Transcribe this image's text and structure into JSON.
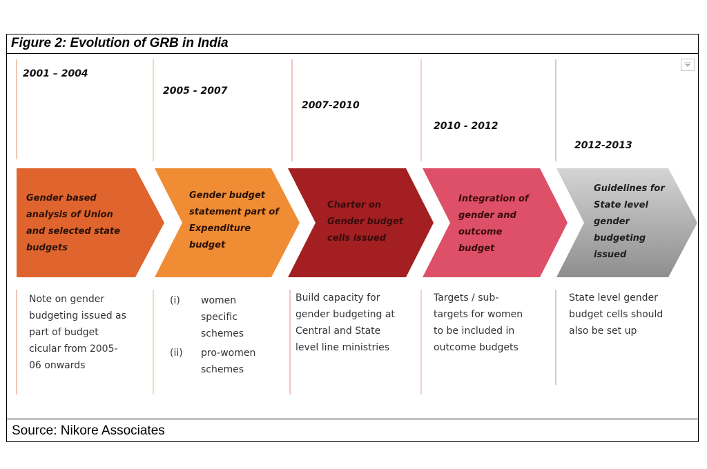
{
  "figure": {
    "title": "Figure 2: Evolution of GRB in India",
    "source": "Source: Nikore Associates"
  },
  "stages": [
    {
      "period": "2001 – 2004",
      "milestone": "Gender based analysis of Union and selected state budgets",
      "milestone_lines": [
        "Gender based",
        "analysis of Union",
        "and selected state",
        "budgets"
      ],
      "description_lines": [
        "Note on gender",
        "budgeting issued as",
        "part of budget",
        "cicular from 2005-",
        "06 onwards"
      ],
      "color": "#e0642e"
    },
    {
      "period": "2005 - 2007",
      "milestone": "Gender budget statement part of Expenditure budget",
      "milestone_lines": [
        "Gender budget",
        "statement part of",
        "Expenditure",
        "budget"
      ],
      "description_items": [
        {
          "marker": "(i)",
          "lines": [
            "women",
            "specific",
            "schemes"
          ]
        },
        {
          "marker": "(ii)",
          "lines": [
            "pro-women",
            "schemes"
          ]
        }
      ],
      "color": "#ef8c34"
    },
    {
      "period": "2007-2010",
      "milestone": "Charter on Gender budget cells issued",
      "milestone_lines": [
        "Charter on",
        "Gender budget",
        "cells issued"
      ],
      "description_lines": [
        "Build capacity for",
        "gender budgeting at",
        "Central and State",
        "level line ministries"
      ],
      "color": "#a31f22"
    },
    {
      "period": "2010 - 2012",
      "milestone": "Integration of gender and outcome budget",
      "milestone_lines": [
        "Integration of",
        "gender and",
        "outcome",
        "budget"
      ],
      "description_lines": [
        "Targets / sub-",
        "targets for women",
        "to be included in",
        "outcome budgets"
      ],
      "color": "#dd5068"
    },
    {
      "period": "2012-2013",
      "milestone": "Guidelines for State level gender budgeting issued",
      "milestone_lines": [
        "Guidelines for",
        "State level",
        "gender",
        "budgeting",
        "issued"
      ],
      "description_lines": [
        "State level gender",
        "budget cells should",
        "also be set up"
      ],
      "color": "#9c9c9c"
    }
  ],
  "icons": {
    "dropdown": "chevron-down-icon"
  }
}
